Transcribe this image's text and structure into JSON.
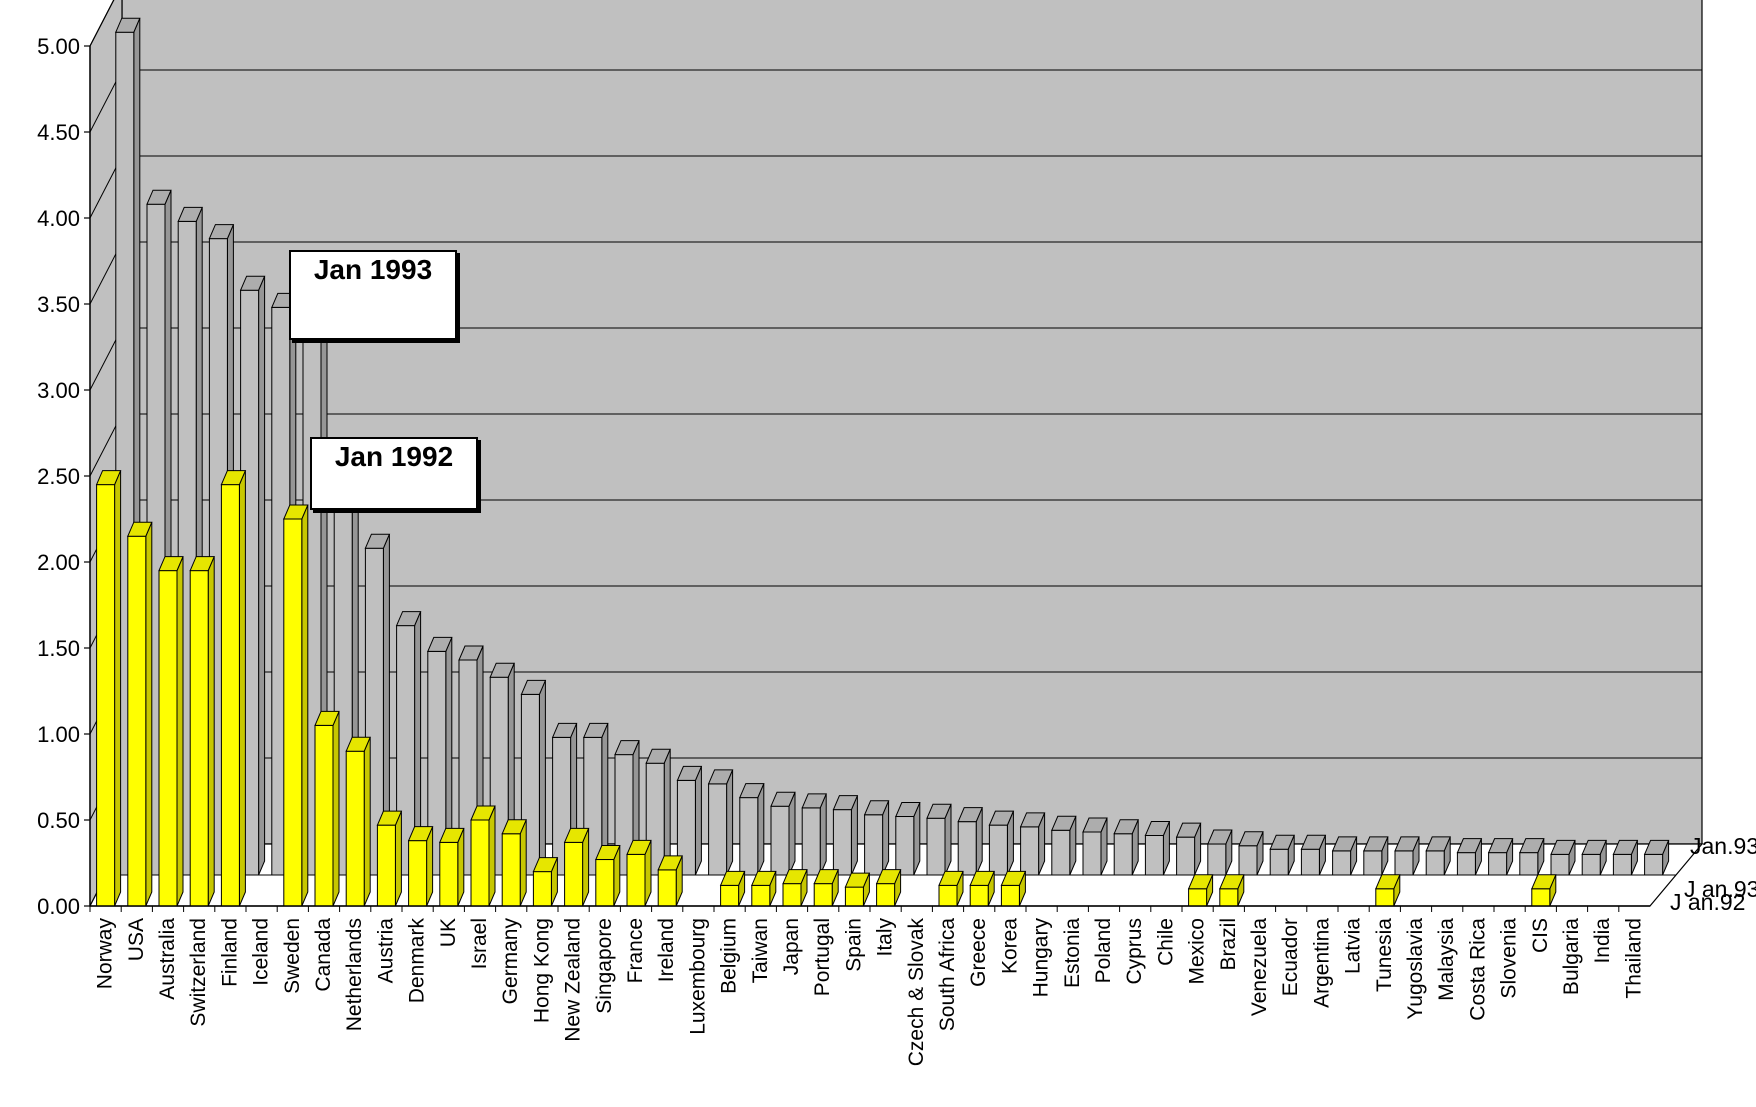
{
  "chart_data": {
    "type": "bar",
    "title": "",
    "xlabel": "",
    "ylabel": "",
    "ylim": [
      0,
      5
    ],
    "yticks": [
      "0.00",
      "0.50",
      "1.00",
      "1.50",
      "2.00",
      "2.50",
      "3.00",
      "3.50",
      "4.00",
      "4.50",
      "5.00"
    ],
    "grid": true,
    "style": "3d-column",
    "categories": [
      "Norway",
      "USA",
      "Australia",
      "Switzerland",
      "Finland",
      "Iceland",
      "Sweden",
      "Canada",
      "Netherlands",
      "Austria",
      "Denmark",
      "UK",
      "Israel",
      "Germany",
      "Hong Kong",
      "New Zealand",
      "Singapore",
      "France",
      "Ireland",
      "Luxembourg",
      "Belgium",
      "Taiwan",
      "Japan",
      "Portugal",
      "Spain",
      "Italy",
      "Czech & Slovak",
      "South Africa",
      "Greece",
      "Korea",
      "Hungary",
      "Estonia",
      "Poland",
      "Cyprus",
      "Chile",
      "Mexico",
      "Brazil",
      "Venezuela",
      "Ecuador",
      "Argentina",
      "Latvia",
      "Tunesia",
      "Yugoslavia",
      "Malaysia",
      "Costa Rica",
      "Slovenia",
      "CIS",
      "Bulgaria",
      "India",
      "Thailand"
    ],
    "series": [
      {
        "name": "Jan.93",
        "color": "#c0c0c0",
        "values": [
          4.9,
          3.9,
          3.8,
          3.7,
          3.4,
          3.3,
          3.25,
          2.15,
          1.9,
          1.45,
          1.3,
          1.25,
          1.15,
          1.05,
          0.8,
          0.8,
          0.7,
          0.65,
          0.55,
          0.53,
          0.45,
          0.4,
          0.39,
          0.38,
          0.35,
          0.34,
          0.33,
          0.31,
          0.29,
          0.28,
          0.26,
          0.25,
          0.24,
          0.23,
          0.22,
          0.18,
          0.17,
          0.15,
          0.15,
          0.14,
          0.14,
          0.14,
          0.14,
          0.13,
          0.13,
          0.13,
          0.12,
          0.12,
          0.12,
          0.12
        ]
      },
      {
        "name": "Jan.92",
        "color": "#ffff00",
        "values": [
          2.45,
          2.15,
          1.95,
          1.95,
          2.45,
          0,
          2.25,
          1.05,
          0.9,
          0.47,
          0.38,
          0.37,
          0.5,
          0.42,
          0.2,
          0.37,
          0.27,
          0.3,
          0.21,
          0,
          0.12,
          0.12,
          0.13,
          0.13,
          0.11,
          0.13,
          0,
          0.12,
          0.12,
          0.12,
          0,
          0,
          0,
          0,
          0,
          0.1,
          0.1,
          0,
          0,
          0,
          0,
          0.1,
          0,
          0,
          0,
          0,
          0.1,
          0,
          0,
          0
        ]
      }
    ],
    "depth_labels": [
      "Jan.93",
      "J an.93",
      "J an.92"
    ],
    "annotations": [
      "Jan 1993",
      "Jan 1992"
    ]
  },
  "legend_1993": "Jan 1993",
  "legend_1992": "Jan 1992"
}
